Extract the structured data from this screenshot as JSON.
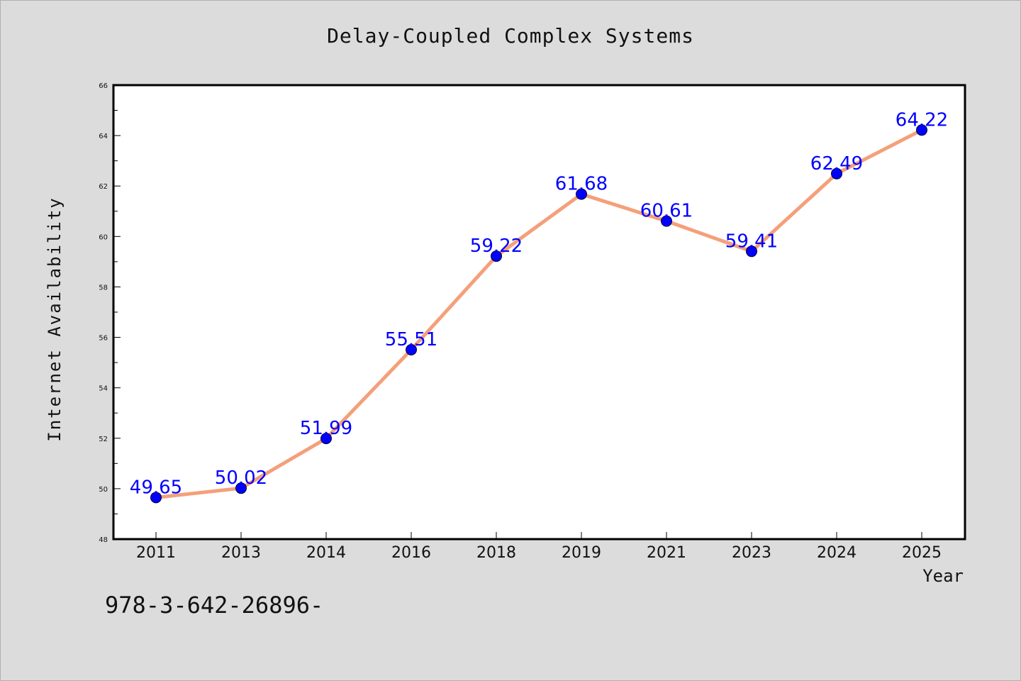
{
  "chart_data": {
    "type": "line",
    "title": "Delay-Coupled Complex Systems",
    "xlabel": "Year",
    "ylabel": "Internet Availability",
    "categories": [
      "2011",
      "2013",
      "2014",
      "2016",
      "2018",
      "2019",
      "2021",
      "2023",
      "2024",
      "2025"
    ],
    "series": [
      {
        "values": [
          49.65,
          50.02,
          51.99,
          55.51,
          59.22,
          61.68,
          60.61,
          59.41,
          62.49,
          64.22
        ],
        "labels": [
          "49.65",
          "50.02",
          "51.99",
          "55.51",
          "59.22",
          "61.68",
          "60.61",
          "59.41",
          "62.49",
          "64.22"
        ],
        "line_color": "#f4a07a",
        "marker_color": "#0000ff"
      }
    ],
    "ylim": [
      48,
      66
    ],
    "yticks": [
      "48",
      "50",
      "52",
      "54",
      "56",
      "58",
      "60",
      "62",
      "64",
      "66"
    ],
    "grid": false,
    "legend": "none"
  },
  "footer": {
    "text": "978-3-642-26896-"
  },
  "colors": {
    "background": "#dcdcdc",
    "plot_background": "#ffffff",
    "label_color": "#0000ff"
  }
}
